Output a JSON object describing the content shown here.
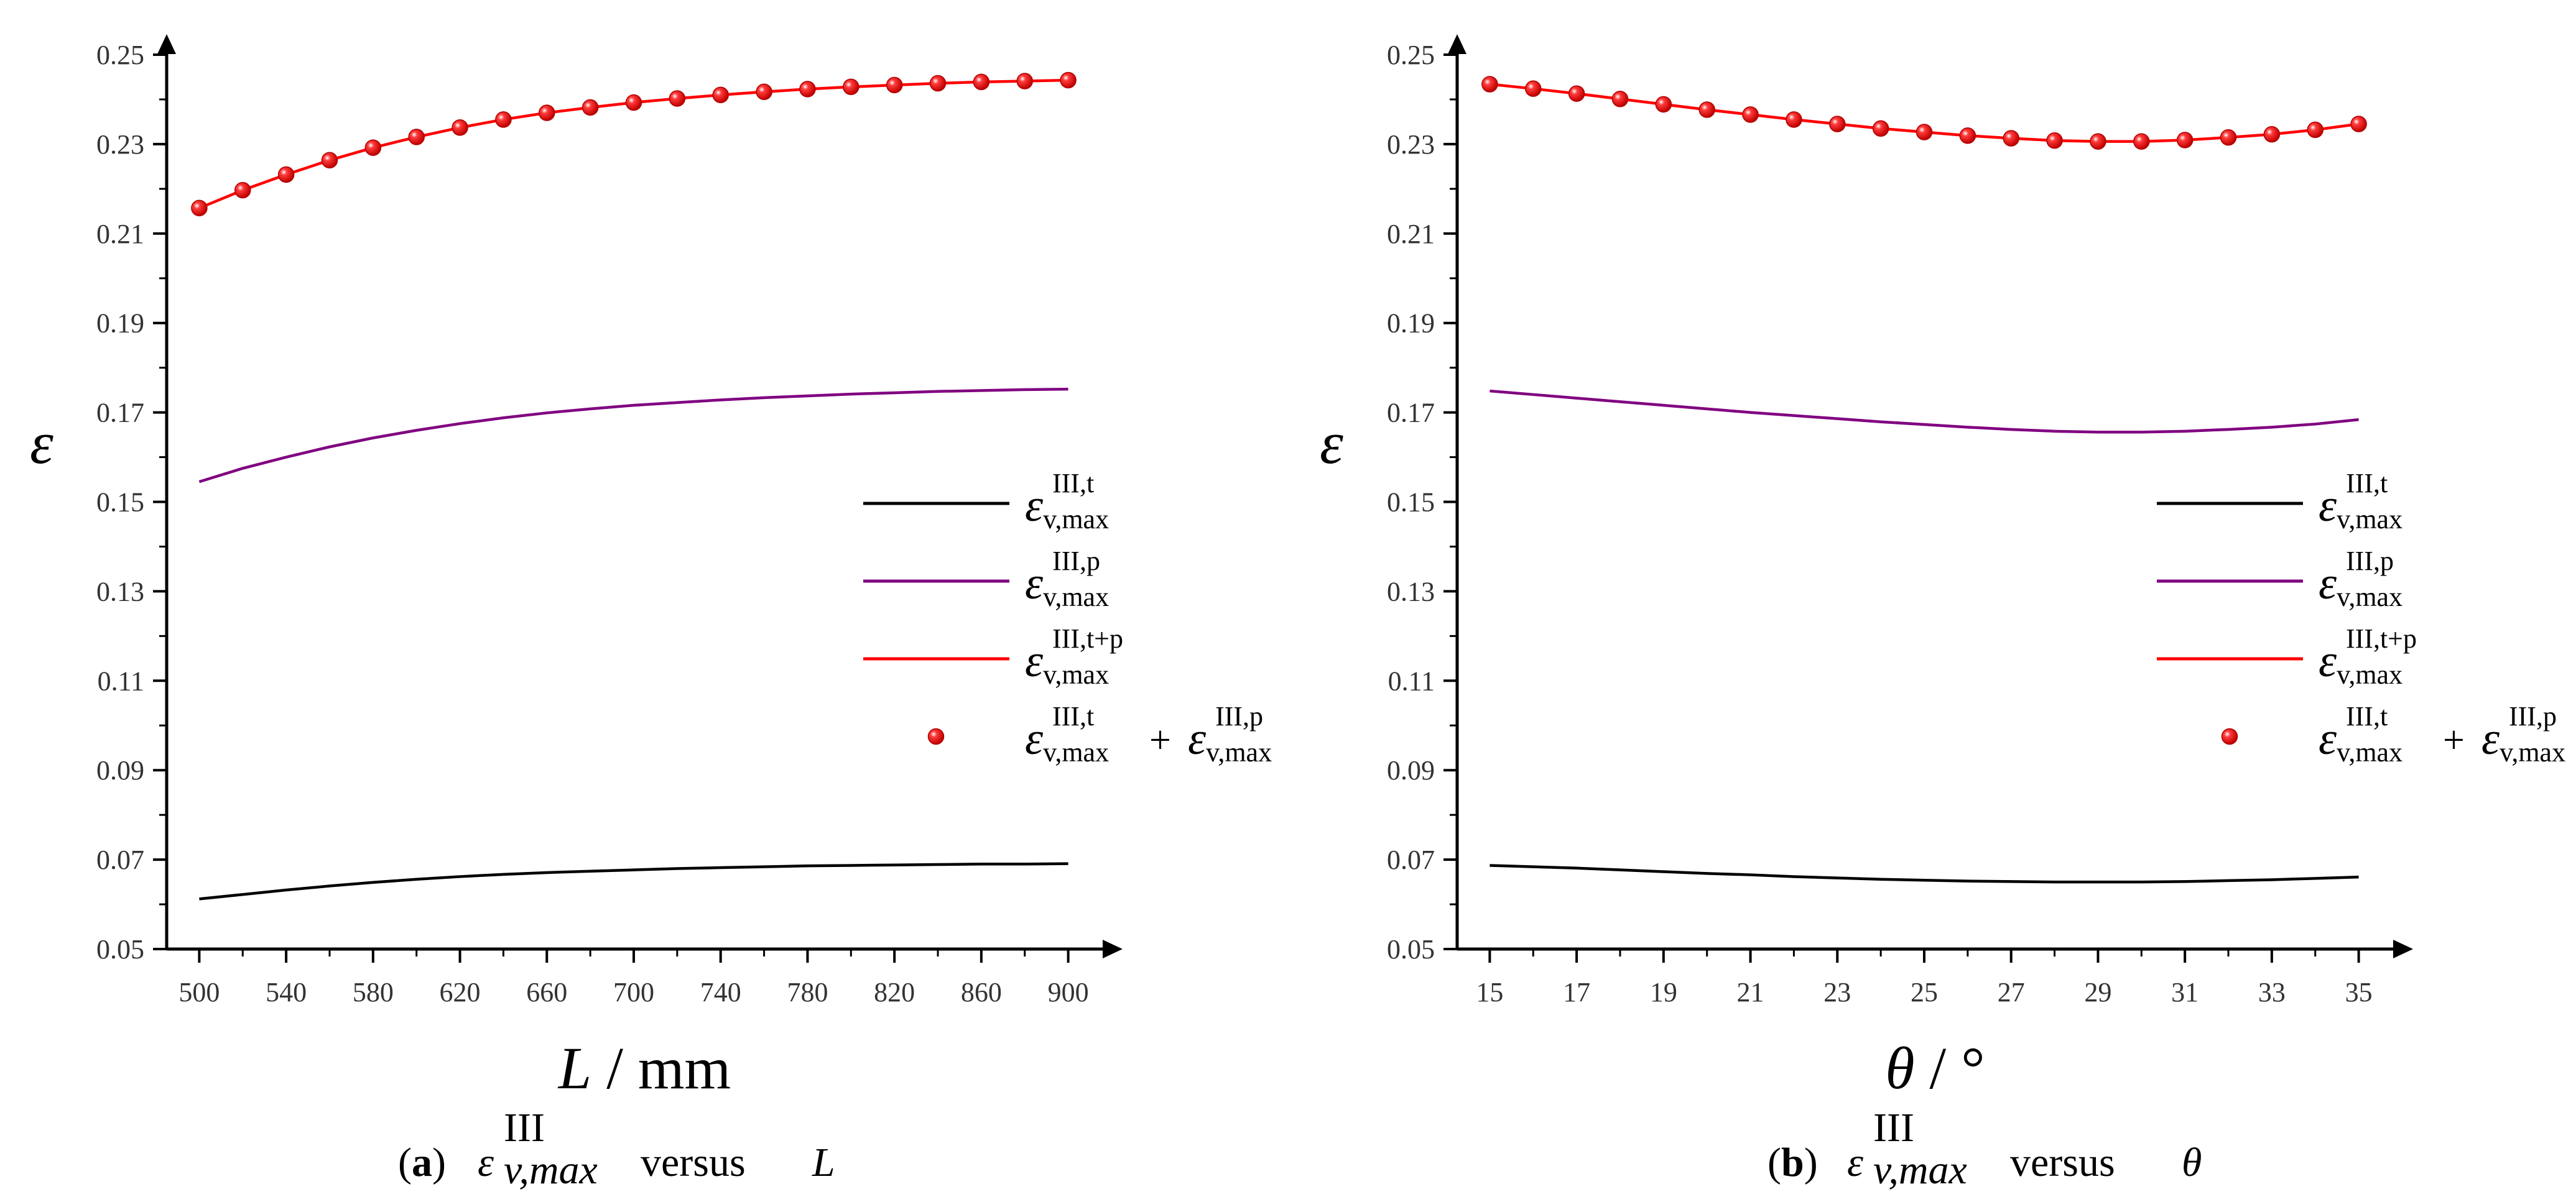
{
  "chart_data": [
    {
      "type": "line",
      "panel_label": "(a)",
      "caption": {
        "tag": "a",
        "var_base": "ε",
        "var_sup": "III",
        "var_sub": "v,max",
        "word": "versus",
        "param": "L"
      },
      "xlabel": "L / mm",
      "xlabel_italic": "L",
      "xlabel_rest": " / mm",
      "ylabel": "ε",
      "xlim": [
        485,
        915
      ],
      "ylim": [
        0.05,
        0.25
      ],
      "xticks": [
        500,
        540,
        580,
        620,
        660,
        700,
        740,
        780,
        820,
        860,
        900
      ],
      "xtick_labels": [
        "500",
        "540",
        "580",
        "620",
        "660",
        "700",
        "740",
        "780",
        "820",
        "860",
        "900"
      ],
      "yticks": [
        0.05,
        0.07,
        0.09,
        0.11,
        0.13,
        0.15,
        0.17,
        0.19,
        0.21,
        0.23,
        0.25
      ],
      "ytick_labels": [
        "0.05",
        "0.07",
        "0.09",
        "0.11",
        "0.13",
        "0.15",
        "0.17",
        "0.19",
        "0.21",
        "0.23",
        "0.25"
      ],
      "x": [
        500,
        520,
        540,
        560,
        580,
        600,
        620,
        640,
        660,
        680,
        700,
        720,
        740,
        760,
        780,
        800,
        820,
        840,
        860,
        880,
        900
      ],
      "series": [
        {
          "key": "t",
          "name": "ε v,max III,t",
          "sup": "III,t",
          "color": "#000000",
          "style": "line",
          "values": [
            0.0612,
            0.0622,
            0.0632,
            0.0641,
            0.0649,
            0.0656,
            0.0662,
            0.0667,
            0.0671,
            0.0674,
            0.0677,
            0.068,
            0.0682,
            0.0684,
            0.0686,
            0.0687,
            0.0688,
            0.0689,
            0.069,
            0.069,
            0.0691
          ]
        },
        {
          "key": "p",
          "name": "ε v,max III,p",
          "sup": "III,p",
          "color": "#800080",
          "style": "line",
          "values": [
            0.1545,
            0.1575,
            0.16,
            0.1623,
            0.1643,
            0.166,
            0.1675,
            0.1688,
            0.1699,
            0.1708,
            0.1716,
            0.1722,
            0.1728,
            0.1733,
            0.1737,
            0.1741,
            0.1744,
            0.1747,
            0.1749,
            0.1751,
            0.1752
          ]
        },
        {
          "key": "tp",
          "name": "ε v,max III,t+p",
          "sup": "III,t+p",
          "color": "#ff0000",
          "style": "line",
          "values": [
            0.2157,
            0.2197,
            0.2232,
            0.2264,
            0.2292,
            0.2316,
            0.2337,
            0.2355,
            0.237,
            0.2382,
            0.2393,
            0.2402,
            0.241,
            0.2417,
            0.2423,
            0.2428,
            0.2432,
            0.2436,
            0.2439,
            0.2441,
            0.2443
          ]
        },
        {
          "key": "sum",
          "name": "ε v,max III,t + ε v,max III,p",
          "sup": "III,t",
          "sup2": "III,p",
          "color": "#ff0000",
          "style": "markers",
          "values": [
            0.2157,
            0.2197,
            0.2232,
            0.2264,
            0.2292,
            0.2316,
            0.2337,
            0.2355,
            0.237,
            0.2382,
            0.2393,
            0.2402,
            0.241,
            0.2417,
            0.2423,
            0.2428,
            0.2432,
            0.2436,
            0.2439,
            0.2441,
            0.2443
          ]
        }
      ],
      "legend": "right"
    },
    {
      "type": "line",
      "panel_label": "(b)",
      "caption": {
        "tag": "b",
        "var_base": "ε",
        "var_sup": "III",
        "var_sub": "v,max",
        "word": "versus",
        "param": "θ"
      },
      "xlabel": "θ / °",
      "xlabel_italic": "θ",
      "xlabel_rest": " / °",
      "ylabel": "ε",
      "xlim": [
        14.25,
        35.75
      ],
      "ylim": [
        0.05,
        0.25
      ],
      "xticks": [
        15,
        17,
        19,
        21,
        23,
        25,
        27,
        29,
        31,
        33,
        35
      ],
      "xtick_labels": [
        "15",
        "17",
        "19",
        "21",
        "23",
        "25",
        "27",
        "29",
        "31",
        "33",
        "35"
      ],
      "yticks": [
        0.05,
        0.07,
        0.09,
        0.11,
        0.13,
        0.15,
        0.17,
        0.19,
        0.21,
        0.23,
        0.25
      ],
      "ytick_labels": [
        "0.05",
        "0.07",
        "0.09",
        "0.11",
        "0.13",
        "0.15",
        "0.17",
        "0.19",
        "0.21",
        "0.23",
        "0.25"
      ],
      "x": [
        15,
        16,
        17,
        18,
        19,
        20,
        21,
        22,
        23,
        24,
        25,
        26,
        27,
        28,
        29,
        30,
        31,
        32,
        33,
        34,
        35
      ],
      "series": [
        {
          "key": "t",
          "name": "ε v,max III,t",
          "sup": "III,t",
          "color": "#000000",
          "style": "line",
          "values": [
            0.0687,
            0.0684,
            0.0681,
            0.0677,
            0.0673,
            0.0669,
            0.0666,
            0.0662,
            0.0659,
            0.0656,
            0.0654,
            0.0652,
            0.0651,
            0.065,
            0.065,
            0.065,
            0.0651,
            0.0653,
            0.0655,
            0.0658,
            0.0661
          ]
        },
        {
          "key": "p",
          "name": "ε v,max III,p",
          "sup": "III,p",
          "color": "#800080",
          "style": "line",
          "values": [
            0.1748,
            0.174,
            0.1732,
            0.1724,
            0.1716,
            0.1708,
            0.17,
            0.1693,
            0.1686,
            0.1679,
            0.1673,
            0.1667,
            0.1662,
            0.1658,
            0.1656,
            0.1656,
            0.1658,
            0.1662,
            0.1667,
            0.1674,
            0.1684
          ]
        },
        {
          "key": "tp",
          "name": "ε v,max III,t+p",
          "sup": "III,t+p",
          "color": "#ff0000",
          "style": "line",
          "values": [
            0.2434,
            0.2424,
            0.2413,
            0.2401,
            0.2389,
            0.2377,
            0.2366,
            0.2355,
            0.2345,
            0.2335,
            0.2327,
            0.2319,
            0.2313,
            0.2308,
            0.2306,
            0.2306,
            0.2309,
            0.2315,
            0.2322,
            0.2332,
            0.2345
          ]
        },
        {
          "key": "sum",
          "name": "ε v,max III,t + ε v,max III,p",
          "sup": "III,t",
          "sup2": "III,p",
          "color": "#ff0000",
          "style": "markers",
          "values": [
            0.2434,
            0.2424,
            0.2413,
            0.2401,
            0.2389,
            0.2377,
            0.2366,
            0.2355,
            0.2345,
            0.2335,
            0.2327,
            0.2319,
            0.2313,
            0.2308,
            0.2306,
            0.2306,
            0.2309,
            0.2315,
            0.2322,
            0.2332,
            0.2345
          ]
        }
      ],
      "legend": "right"
    }
  ],
  "legend_sub": "v,max",
  "legend_base": "ε",
  "legend_plus": "+"
}
